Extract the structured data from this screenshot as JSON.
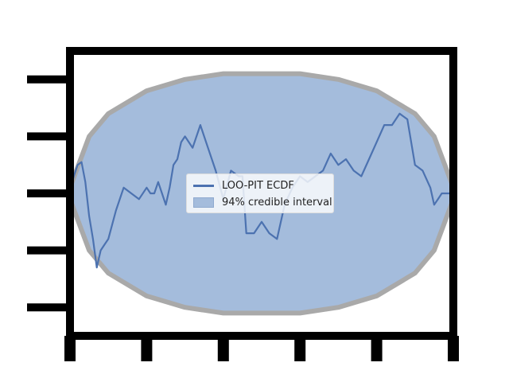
{
  "chart_data": {
    "type": "line",
    "title": "",
    "xlabel": "",
    "ylabel": "",
    "xlim": [
      0,
      1
    ],
    "ylim": [
      -0.25,
      0.25
    ],
    "x_ticks": [
      0.0,
      0.2,
      0.4,
      0.6,
      0.8,
      1.0
    ],
    "y_ticks": [
      -0.2,
      -0.1,
      0.0,
      0.1,
      0.2
    ],
    "grid": false,
    "legend": "center",
    "colors": {
      "line": "#4c72b0",
      "band": "#a4bcdc"
    },
    "series": [
      {
        "name": "LOO-PIT ECDF",
        "x": [
          0.0,
          0.01,
          0.02,
          0.03,
          0.04,
          0.05,
          0.06,
          0.07,
          0.08,
          0.09,
          0.1,
          0.12,
          0.14,
          0.16,
          0.18,
          0.2,
          0.21,
          0.22,
          0.23,
          0.24,
          0.25,
          0.26,
          0.27,
          0.28,
          0.29,
          0.3,
          0.32,
          0.34,
          0.36,
          0.38,
          0.4,
          0.42,
          0.44,
          0.45,
          0.46,
          0.48,
          0.5,
          0.52,
          0.54,
          0.56,
          0.58,
          0.6,
          0.62,
          0.64,
          0.66,
          0.68,
          0.7,
          0.72,
          0.74,
          0.76,
          0.78,
          0.8,
          0.82,
          0.84,
          0.86,
          0.88,
          0.9,
          0.92,
          0.94,
          0.95,
          0.96,
          0.97,
          0.98,
          1.0
        ],
        "y": [
          0.005,
          0.03,
          0.05,
          0.055,
          0.02,
          -0.04,
          -0.08,
          -0.13,
          -0.1,
          -0.09,
          -0.08,
          -0.03,
          0.01,
          0.0,
          -0.01,
          0.01,
          0.0,
          0.0,
          0.02,
          0.0,
          -0.02,
          0.01,
          0.05,
          0.06,
          0.09,
          0.1,
          0.08,
          0.12,
          0.08,
          0.04,
          -0.01,
          0.04,
          0.03,
          0.03,
          -0.07,
          -0.07,
          -0.05,
          -0.07,
          -0.08,
          -0.02,
          0.01,
          0.03,
          0.02,
          0.03,
          0.04,
          0.07,
          0.05,
          0.06,
          0.04,
          0.03,
          0.06,
          0.09,
          0.12,
          0.12,
          0.14,
          0.13,
          0.05,
          0.04,
          0.01,
          -0.02,
          -0.01,
          0.0,
          0.0,
          0.0
        ]
      }
    ],
    "band": {
      "name": "94% credible interval",
      "x": [
        0.0,
        0.05,
        0.1,
        0.2,
        0.3,
        0.4,
        0.5,
        0.6,
        0.7,
        0.8,
        0.9,
        0.95,
        1.0
      ],
      "lower": [
        -0.01,
        -0.1,
        -0.14,
        -0.18,
        -0.2,
        -0.21,
        -0.21,
        -0.21,
        -0.2,
        -0.18,
        -0.14,
        -0.1,
        -0.01
      ],
      "upper": [
        0.01,
        0.1,
        0.14,
        0.18,
        0.2,
        0.21,
        0.21,
        0.21,
        0.2,
        0.18,
        0.14,
        0.1,
        0.01
      ]
    }
  }
}
